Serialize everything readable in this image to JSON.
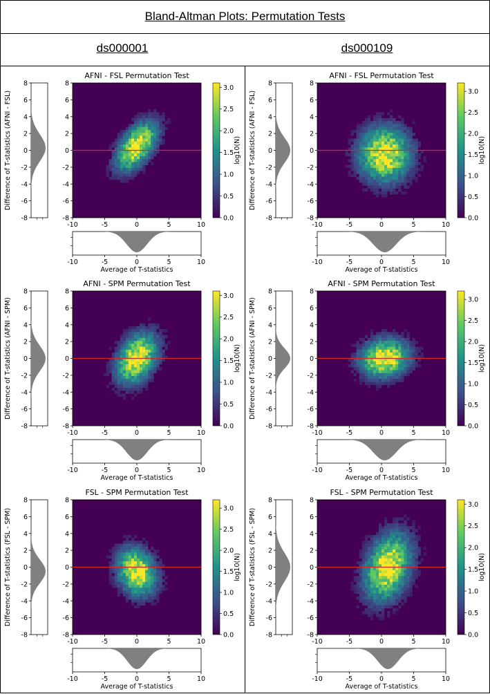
{
  "header": {
    "title": "Bland-Altman Plots: Permutation Tests"
  },
  "columns": [
    {
      "title": "ds000001"
    },
    {
      "title": "ds000109"
    }
  ],
  "chart_data": [
    {
      "type": "heatmap",
      "dataset": "ds000001",
      "title": "AFNI - FSL Permutation Test",
      "xlabel": "Average of T-statistics",
      "ylabel": "Difference of T-statistics (AFNI - FSL)",
      "xlim": [
        -10,
        10
      ],
      "ylim": [
        -8,
        8
      ],
      "xticks": [
        -10,
        -5,
        0,
        5,
        10
      ],
      "yticks": [
        -8,
        -6,
        -4,
        -2,
        0,
        2,
        4,
        6,
        8
      ],
      "colorbar": {
        "label": "log10(N)",
        "min": 0.0,
        "max": 3.1,
        "ticks": [
          0.0,
          0.5,
          1.0,
          1.5,
          2.0,
          2.5,
          3.0
        ]
      },
      "reference_line_y": 0,
      "cloud": {
        "center": [
          0,
          0.5
        ],
        "spread": [
          3.2,
          2.9
        ],
        "corr": 0.55
      },
      "marginal_x": {
        "center": 0,
        "sd": 1.6
      },
      "marginal_y": {
        "center": 0.3,
        "sd": 1.6
      }
    },
    {
      "type": "heatmap",
      "dataset": "ds000109",
      "title": "AFNI - FSL Permutation Test",
      "xlabel": "Average of T-statistics",
      "ylabel": "Difference of T-statistics (AFNI - FSL)",
      "xlim": [
        -10,
        10
      ],
      "ylim": [
        -8,
        8
      ],
      "xticks": [
        -10,
        -5,
        0,
        5,
        10
      ],
      "yticks": [
        -8,
        -6,
        -4,
        -2,
        0,
        2,
        4,
        6,
        8
      ],
      "colorbar": {
        "label": "log10(N)",
        "min": 0.0,
        "max": 3.2,
        "ticks": [
          0.0,
          0.5,
          1.0,
          1.5,
          2.0,
          2.5,
          3.0
        ]
      },
      "reference_line_y": 0,
      "cloud": {
        "center": [
          0.5,
          -0.5
        ],
        "spread": [
          4.0,
          3.3
        ],
        "corr": 0.0
      },
      "marginal_x": {
        "center": 0.5,
        "sd": 1.8
      },
      "marginal_y": {
        "center": 0,
        "sd": 1.5
      }
    },
    {
      "type": "heatmap",
      "dataset": "ds000001",
      "title": "AFNI - SPM Permutation Test",
      "xlabel": "Average of T-statistics",
      "ylabel": "Difference of T-statistics (AFNI - SPM)",
      "xlim": [
        -10,
        10
      ],
      "ylim": [
        -8,
        8
      ],
      "xticks": [
        -10,
        -5,
        0,
        5,
        10
      ],
      "yticks": [
        -8,
        -6,
        -4,
        -2,
        0,
        2,
        4,
        6,
        8
      ],
      "colorbar": {
        "label": "log10(N)",
        "min": 0.0,
        "max": 3.1,
        "ticks": [
          0.0,
          0.5,
          1.0,
          1.5,
          2.0,
          2.5,
          3.0
        ]
      },
      "reference_line_y": 0,
      "cloud": {
        "center": [
          0,
          0
        ],
        "spread": [
          3.2,
          3.0
        ],
        "corr": 0.35
      },
      "marginal_x": {
        "center": 0,
        "sd": 1.6
      },
      "marginal_y": {
        "center": 0,
        "sd": 1.5
      }
    },
    {
      "type": "heatmap",
      "dataset": "ds000109",
      "title": "AFNI - SPM Permutation Test",
      "xlabel": "Average of T-statistics",
      "ylabel": "Difference of T-statistics (AFNI - SPM)",
      "xlim": [
        -10,
        10
      ],
      "ylim": [
        -8,
        8
      ],
      "xticks": [
        -10,
        -5,
        0,
        5,
        10
      ],
      "yticks": [
        -8,
        -6,
        -4,
        -2,
        0,
        2,
        4,
        6,
        8
      ],
      "colorbar": {
        "label": "log10(N)",
        "min": 0.0,
        "max": 3.2,
        "ticks": [
          0.0,
          0.5,
          1.0,
          1.5,
          2.0,
          2.5,
          3.0
        ]
      },
      "reference_line_y": 0,
      "cloud": {
        "center": [
          0.5,
          0
        ],
        "spread": [
          3.8,
          2.3
        ],
        "corr": 0.1
      },
      "marginal_x": {
        "center": 0.5,
        "sd": 1.8
      },
      "marginal_y": {
        "center": 0,
        "sd": 1.2
      }
    },
    {
      "type": "heatmap",
      "dataset": "ds000001",
      "title": "FSL - SPM Permutation Test",
      "xlabel": "Average of T-statistics",
      "ylabel": "Difference of T-statistics (FSL - SPM)",
      "xlim": [
        -10,
        10
      ],
      "ylim": [
        -8,
        8
      ],
      "xticks": [
        -10,
        -5,
        0,
        5,
        10
      ],
      "yticks": [
        -8,
        -6,
        -4,
        -2,
        0,
        2,
        4,
        6,
        8
      ],
      "colorbar": {
        "label": "log10(N)",
        "min": 0.0,
        "max": 3.2,
        "ticks": [
          0.0,
          0.5,
          1.0,
          1.5,
          2.0,
          2.5,
          3.0
        ]
      },
      "reference_line_y": 0,
      "cloud": {
        "center": [
          0,
          -0.6
        ],
        "spread": [
          3.0,
          2.8
        ],
        "corr": -0.2
      },
      "marginal_x": {
        "center": 0,
        "sd": 1.5
      },
      "marginal_y": {
        "center": -0.5,
        "sd": 1.4
      }
    },
    {
      "type": "heatmap",
      "dataset": "ds000109",
      "title": "FSL - SPM Permutation Test",
      "xlabel": "Average of T-statistics",
      "ylabel": "Difference of T-statistics (FSL - SPM)",
      "xlim": [
        -10,
        10
      ],
      "ylim": [
        -8,
        8
      ],
      "xticks": [
        -10,
        -5,
        0,
        5,
        10
      ],
      "yticks": [
        -8,
        -6,
        -4,
        -2,
        0,
        2,
        4,
        6,
        8
      ],
      "colorbar": {
        "label": "log10(N)",
        "min": 0.0,
        "max": 3.1,
        "ticks": [
          0.0,
          0.5,
          1.0,
          1.5,
          2.0,
          2.5,
          3.0
        ]
      },
      "reference_line_y": 0,
      "cloud": {
        "center": [
          1,
          0
        ],
        "spread": [
          3.6,
          4.0
        ],
        "corr": 0.3
      },
      "marginal_x": {
        "center": 1,
        "sd": 1.6
      },
      "marginal_y": {
        "center": 0,
        "sd": 1.7
      }
    }
  ],
  "colors": {
    "viridis": [
      "#440154",
      "#3b528b",
      "#21918c",
      "#5ec962",
      "#fde725"
    ],
    "reference_line": "#d62728",
    "marginal_fill": "#808080"
  }
}
